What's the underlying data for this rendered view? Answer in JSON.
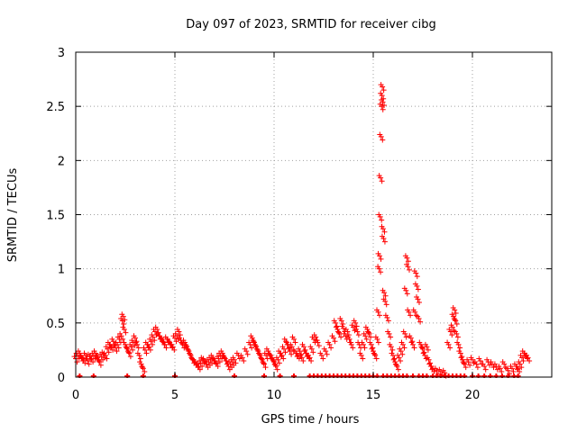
{
  "chart_data": {
    "type": "scatter",
    "title": "Day 097 of 2023, SRMTID for receiver cibg",
    "xlabel": "GPS time / hours",
    "ylabel": "SRMTID / TECUs",
    "xlim": [
      0,
      24
    ],
    "ylim": [
      0,
      3
    ],
    "x_ticks": [
      0,
      5,
      10,
      15,
      20
    ],
    "x_tick_labels": [
      "0",
      "5",
      "10",
      "15",
      "20"
    ],
    "y_ticks": [
      0,
      0.5,
      1,
      1.5,
      2,
      2.5,
      3
    ],
    "y_tick_labels": [
      "0",
      "0.5",
      "1",
      "1.5",
      "2",
      "2.5",
      "3"
    ],
    "grid": true,
    "legend": "none",
    "marker": "+",
    "series_color": "#ff0000",
    "series": [
      {
        "name": "SRMTID",
        "points": [
          [
            0.0,
            0.17
          ],
          [
            0.1,
            0.2
          ],
          [
            0.2,
            0.22
          ],
          [
            0.3,
            0.18
          ],
          [
            0.4,
            0.16
          ],
          [
            0.5,
            0.2
          ],
          [
            0.6,
            0.15
          ],
          [
            0.7,
            0.19
          ],
          [
            0.8,
            0.17
          ],
          [
            0.9,
            0.2
          ],
          [
            1.0,
            0.22
          ],
          [
            1.1,
            0.18
          ],
          [
            1.2,
            0.14
          ],
          [
            1.3,
            0.19
          ],
          [
            1.4,
            0.21
          ],
          [
            1.5,
            0.2
          ],
          [
            1.6,
            0.26
          ],
          [
            1.7,
            0.3
          ],
          [
            1.8,
            0.28
          ],
          [
            1.9,
            0.33
          ],
          [
            2.0,
            0.27
          ],
          [
            2.1,
            0.3
          ],
          [
            2.2,
            0.35
          ],
          [
            2.3,
            0.38
          ],
          [
            2.35,
            0.52
          ],
          [
            2.4,
            0.56
          ],
          [
            2.45,
            0.44
          ],
          [
            2.5,
            0.3
          ],
          [
            2.6,
            0.26
          ],
          [
            2.7,
            0.22
          ],
          [
            2.8,
            0.28
          ],
          [
            2.9,
            0.32
          ],
          [
            3.0,
            0.36
          ],
          [
            3.1,
            0.3
          ],
          [
            3.2,
            0.2
          ],
          [
            3.3,
            0.12
          ],
          [
            3.4,
            0.08
          ],
          [
            3.5,
            0.25
          ],
          [
            3.6,
            0.3
          ],
          [
            3.7,
            0.28
          ],
          [
            3.8,
            0.33
          ],
          [
            3.9,
            0.37
          ],
          [
            4.0,
            0.42
          ],
          [
            4.1,
            0.44
          ],
          [
            4.2,
            0.38
          ],
          [
            4.3,
            0.36
          ],
          [
            4.4,
            0.33
          ],
          [
            4.5,
            0.3
          ],
          [
            4.6,
            0.35
          ],
          [
            4.7,
            0.33
          ],
          [
            4.8,
            0.3
          ],
          [
            4.9,
            0.28
          ],
          [
            5.0,
            0.36
          ],
          [
            5.1,
            0.38
          ],
          [
            5.2,
            0.42
          ],
          [
            5.3,
            0.34
          ],
          [
            5.4,
            0.3
          ],
          [
            5.5,
            0.32
          ],
          [
            5.6,
            0.28
          ],
          [
            5.7,
            0.24
          ],
          [
            5.8,
            0.2
          ],
          [
            5.9,
            0.16
          ],
          [
            6.0,
            0.14
          ],
          [
            6.1,
            0.12
          ],
          [
            6.2,
            0.1
          ],
          [
            6.3,
            0.13
          ],
          [
            6.4,
            0.16
          ],
          [
            6.5,
            0.15
          ],
          [
            6.6,
            0.12
          ],
          [
            6.7,
            0.14
          ],
          [
            6.8,
            0.16
          ],
          [
            6.9,
            0.18
          ],
          [
            7.0,
            0.15
          ],
          [
            7.1,
            0.13
          ],
          [
            7.2,
            0.17
          ],
          [
            7.3,
            0.2
          ],
          [
            7.4,
            0.22
          ],
          [
            7.5,
            0.18
          ],
          [
            7.6,
            0.15
          ],
          [
            7.7,
            0.1
          ],
          [
            7.8,
            0.12
          ],
          [
            7.9,
            0.14
          ],
          [
            8.0,
            0.16
          ],
          [
            8.2,
            0.2
          ],
          [
            8.4,
            0.18
          ],
          [
            8.6,
            0.24
          ],
          [
            8.8,
            0.3
          ],
          [
            8.9,
            0.36
          ],
          [
            9.0,
            0.32
          ],
          [
            9.1,
            0.28
          ],
          [
            9.2,
            0.24
          ],
          [
            9.3,
            0.2
          ],
          [
            9.4,
            0.16
          ],
          [
            9.5,
            0.12
          ],
          [
            9.6,
            0.2
          ],
          [
            9.7,
            0.24
          ],
          [
            9.8,
            0.2
          ],
          [
            9.9,
            0.18
          ],
          [
            10.0,
            0.14
          ],
          [
            10.1,
            0.1
          ],
          [
            10.2,
            0.16
          ],
          [
            10.3,
            0.22
          ],
          [
            10.4,
            0.2
          ],
          [
            10.5,
            0.26
          ],
          [
            10.6,
            0.33
          ],
          [
            10.7,
            0.3
          ],
          [
            10.8,
            0.24
          ],
          [
            10.9,
            0.28
          ],
          [
            11.0,
            0.35
          ],
          [
            11.1,
            0.22
          ],
          [
            11.2,
            0.2
          ],
          [
            11.3,
            0.24
          ],
          [
            11.4,
            0.18
          ],
          [
            11.5,
            0.28
          ],
          [
            11.6,
            0.22
          ],
          [
            11.7,
            0.2
          ],
          [
            11.8,
            0.18
          ],
          [
            11.9,
            0.26
          ],
          [
            12.0,
            0.35
          ],
          [
            12.1,
            0.37
          ],
          [
            12.2,
            0.32
          ],
          [
            12.4,
            0.2
          ],
          [
            12.6,
            0.24
          ],
          [
            12.8,
            0.3
          ],
          [
            13.0,
            0.36
          ],
          [
            13.1,
            0.5
          ],
          [
            13.2,
            0.44
          ],
          [
            13.3,
            0.4
          ],
          [
            13.4,
            0.52
          ],
          [
            13.5,
            0.45
          ],
          [
            13.6,
            0.38
          ],
          [
            13.7,
            0.42
          ],
          [
            13.8,
            0.35
          ],
          [
            13.9,
            0.3
          ],
          [
            14.0,
            0.46
          ],
          [
            14.1,
            0.5
          ],
          [
            14.2,
            0.42
          ],
          [
            14.3,
            0.3
          ],
          [
            14.4,
            0.2
          ],
          [
            14.5,
            0.3
          ],
          [
            14.6,
            0.38
          ],
          [
            14.7,
            0.44
          ],
          [
            14.8,
            0.4
          ],
          [
            14.9,
            0.3
          ],
          [
            15.0,
            0.24
          ],
          [
            15.1,
            0.2
          ],
          [
            15.2,
            0.35
          ],
          [
            15.25,
            0.6
          ],
          [
            15.3,
            1.0
          ],
          [
            15.32,
            1.12
          ],
          [
            15.35,
            1.48
          ],
          [
            15.37,
            1.84
          ],
          [
            15.4,
            2.22
          ],
          [
            15.42,
            2.5
          ],
          [
            15.44,
            2.6
          ],
          [
            15.46,
            2.68
          ],
          [
            15.48,
            2.54
          ],
          [
            15.5,
            1.37
          ],
          [
            15.52,
            1.28
          ],
          [
            15.55,
            0.78
          ],
          [
            15.6,
            0.7
          ],
          [
            15.7,
            0.55
          ],
          [
            15.8,
            0.4
          ],
          [
            15.9,
            0.28
          ],
          [
            16.0,
            0.2
          ],
          [
            16.1,
            0.14
          ],
          [
            16.2,
            0.1
          ],
          [
            16.3,
            0.18
          ],
          [
            16.4,
            0.24
          ],
          [
            16.5,
            0.3
          ],
          [
            16.6,
            0.4
          ],
          [
            16.65,
            0.8
          ],
          [
            16.7,
            1.1
          ],
          [
            16.75,
            1.02
          ],
          [
            16.8,
            0.6
          ],
          [
            16.9,
            0.36
          ],
          [
            17.0,
            0.3
          ],
          [
            17.1,
            0.6
          ],
          [
            17.15,
            0.96
          ],
          [
            17.2,
            0.84
          ],
          [
            17.25,
            0.72
          ],
          [
            17.3,
            0.54
          ],
          [
            17.4,
            0.3
          ],
          [
            17.5,
            0.26
          ],
          [
            17.6,
            0.2
          ],
          [
            17.7,
            0.28
          ],
          [
            17.8,
            0.16
          ],
          [
            17.9,
            0.1
          ],
          [
            18.0,
            0.08
          ],
          [
            18.2,
            0.06
          ],
          [
            18.4,
            0.05
          ],
          [
            18.6,
            0.04
          ],
          [
            18.8,
            0.3
          ],
          [
            18.9,
            0.42
          ],
          [
            19.0,
            0.46
          ],
          [
            19.05,
            0.56
          ],
          [
            19.1,
            0.62
          ],
          [
            19.15,
            0.52
          ],
          [
            19.2,
            0.4
          ],
          [
            19.3,
            0.3
          ],
          [
            19.4,
            0.22
          ],
          [
            19.5,
            0.16
          ],
          [
            19.6,
            0.12
          ],
          [
            19.8,
            0.14
          ],
          [
            20.0,
            0.16
          ],
          [
            20.2,
            0.12
          ],
          [
            20.4,
            0.15
          ],
          [
            20.6,
            0.1
          ],
          [
            20.8,
            0.14
          ],
          [
            21.0,
            0.12
          ],
          [
            21.2,
            0.1
          ],
          [
            21.4,
            0.08
          ],
          [
            21.6,
            0.12
          ],
          [
            21.8,
            0.06
          ],
          [
            22.0,
            0.08
          ],
          [
            22.2,
            0.1
          ],
          [
            22.3,
            0.08
          ],
          [
            22.4,
            0.12
          ],
          [
            22.5,
            0.18
          ],
          [
            22.6,
            0.22
          ],
          [
            22.7,
            0.2
          ],
          [
            22.8,
            0.18
          ]
        ]
      }
    ],
    "zero_points_x": [
      0.2,
      0.9,
      2.6,
      3.4,
      5.0,
      8.0,
      9.5,
      10.3,
      11.0,
      11.8,
      12.0,
      12.2,
      12.4,
      12.6,
      12.8,
      13.0,
      13.2,
      13.4,
      13.6,
      13.8,
      14.0,
      14.2,
      14.4,
      14.6,
      14.8,
      15.0,
      15.2,
      15.5,
      15.7,
      15.9,
      16.1,
      16.3,
      16.5,
      16.7,
      17.0,
      17.3,
      17.5,
      17.7,
      18.0,
      18.2,
      18.4,
      18.6,
      18.8,
      19.0,
      19.2,
      19.4,
      19.6,
      20.0,
      20.3,
      20.6,
      20.9,
      21.2,
      21.5,
      21.8,
      22.1,
      22.3
    ]
  }
}
